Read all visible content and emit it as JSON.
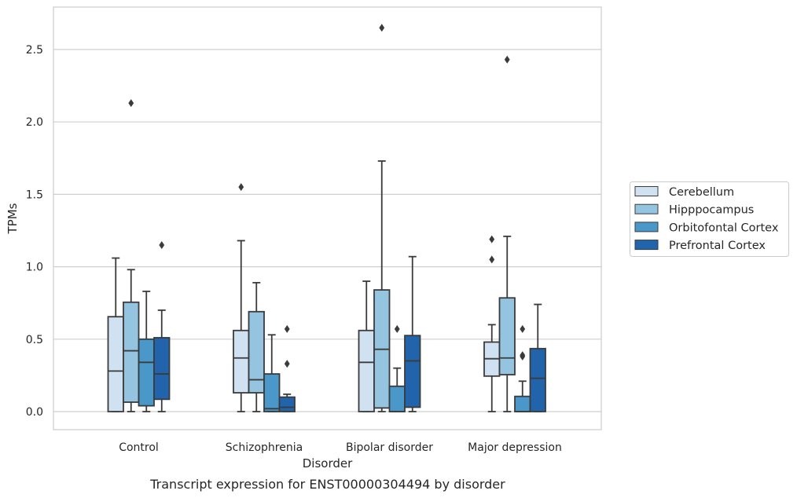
{
  "chart_data": {
    "type": "boxplot",
    "title": "",
    "caption": "Transcript expression for ENST00000304494 by disorder",
    "xlabel": "Disorder",
    "ylabel": "TPMs",
    "ylim": [
      -0.13,
      2.79
    ],
    "yticks": [
      0.0,
      0.5,
      1.0,
      1.5,
      2.0,
      2.5
    ],
    "ytick_labels": [
      "0.0",
      "0.5",
      "1.0",
      "1.5",
      "2.0",
      "2.5"
    ],
    "grid": "horizontal",
    "legend_position": "right",
    "categories": [
      "Control",
      "Schizophrenia",
      "Bipolar disorder",
      "Major depression"
    ],
    "series": [
      {
        "name": "Cerebellum",
        "color": "#d0e1f2",
        "boxes": [
          {
            "min": 0.0,
            "q1": 0.0,
            "median": 0.28,
            "q3": 0.655,
            "max": 1.06,
            "outliers": []
          },
          {
            "min": 0.0,
            "q1": 0.13,
            "median": 0.37,
            "q3": 0.56,
            "max": 1.18,
            "outliers": [
              1.55
            ]
          },
          {
            "min": 0.0,
            "q1": 0.0,
            "median": 0.34,
            "q3": 0.56,
            "max": 0.9,
            "outliers": []
          },
          {
            "min": 0.0,
            "q1": 0.245,
            "median": 0.365,
            "q3": 0.48,
            "max": 0.6,
            "outliers": [
              1.05,
              1.19
            ]
          }
        ]
      },
      {
        "name": "Hipppocampus",
        "color": "#94c4df",
        "boxes": [
          {
            "min": 0.0,
            "q1": 0.065,
            "median": 0.42,
            "q3": 0.755,
            "max": 0.98,
            "outliers": [
              2.13
            ]
          },
          {
            "min": 0.0,
            "q1": 0.13,
            "median": 0.22,
            "q3": 0.69,
            "max": 0.89,
            "outliers": []
          },
          {
            "min": 0.0,
            "q1": 0.025,
            "median": 0.43,
            "q3": 0.84,
            "max": 1.73,
            "outliers": [
              2.65
            ]
          },
          {
            "min": 0.0,
            "q1": 0.255,
            "median": 0.37,
            "q3": 0.785,
            "max": 1.21,
            "outliers": [
              2.43
            ]
          }
        ]
      },
      {
        "name": "Orbitofontal Cortex",
        "color": "#4a98c9",
        "boxes": [
          {
            "min": 0.0,
            "q1": 0.04,
            "median": 0.34,
            "q3": 0.5,
            "max": 0.83,
            "outliers": []
          },
          {
            "min": 0.0,
            "q1": 0.0,
            "median": 0.02,
            "q3": 0.26,
            "max": 0.53,
            "outliers": []
          },
          {
            "min": 0.0,
            "q1": 0.0,
            "median": 0.0,
            "q3": 0.175,
            "max": 0.3,
            "outliers": [
              0.57
            ]
          },
          {
            "min": 0.0,
            "q1": 0.0,
            "median": 0.0,
            "q3": 0.105,
            "max": 0.21,
            "outliers": [
              0.38,
              0.39,
              0.57
            ]
          }
        ]
      },
      {
        "name": "Prefrontal Cortex",
        "color": "#2164ab",
        "boxes": [
          {
            "min": 0.0,
            "q1": 0.085,
            "median": 0.26,
            "q3": 0.51,
            "max": 0.7,
            "outliers": [
              1.15
            ]
          },
          {
            "min": 0.0,
            "q1": 0.0,
            "median": 0.03,
            "q3": 0.1,
            "max": 0.12,
            "outliers": [
              0.33,
              0.57
            ]
          },
          {
            "min": 0.0,
            "q1": 0.03,
            "median": 0.35,
            "q3": 0.525,
            "max": 1.07,
            "outliers": []
          },
          {
            "min": 0.0,
            "q1": 0.0,
            "median": 0.23,
            "q3": 0.435,
            "max": 0.74,
            "outliers": []
          }
        ]
      }
    ]
  }
}
